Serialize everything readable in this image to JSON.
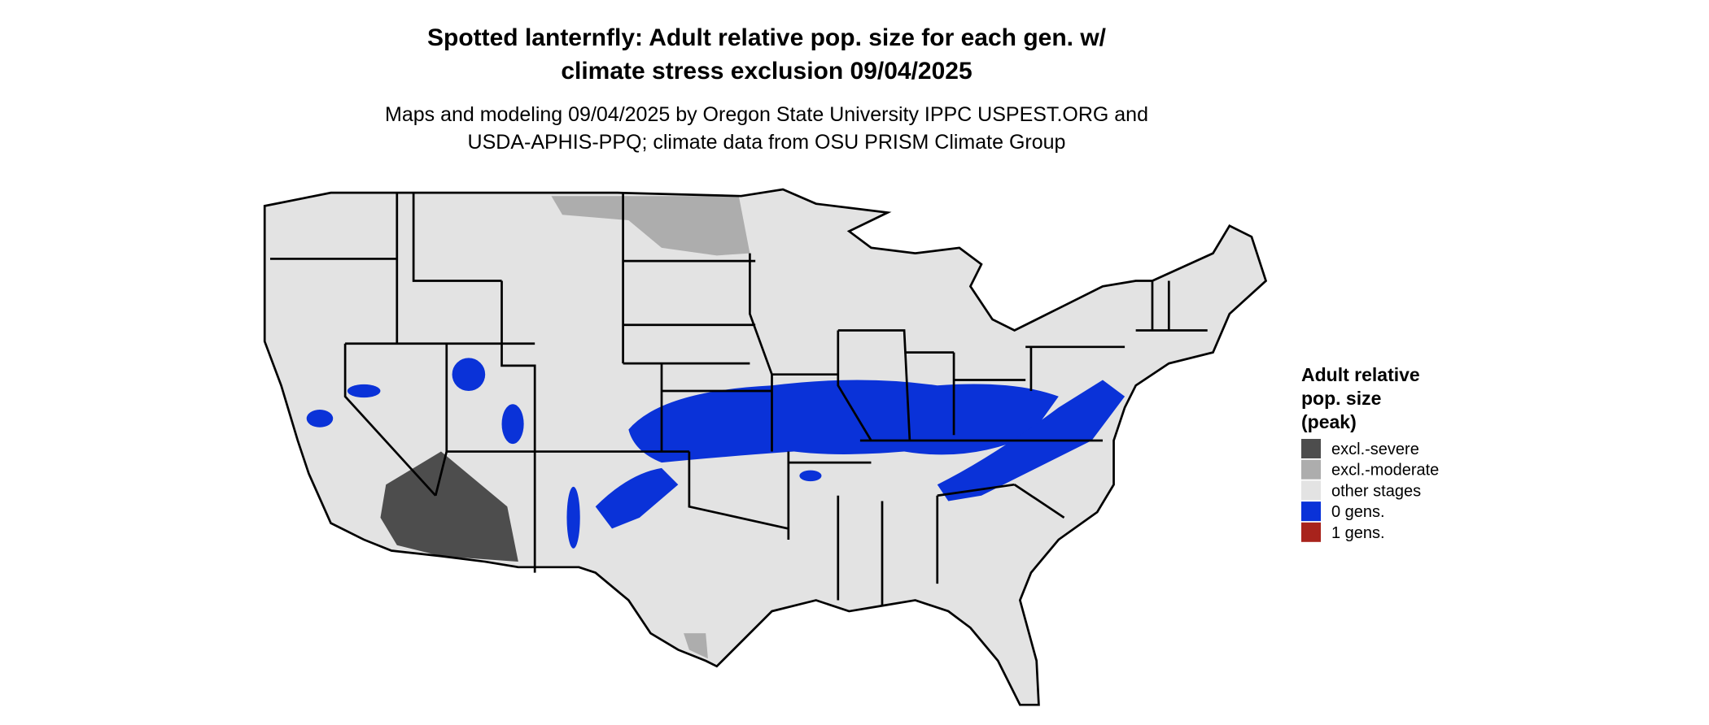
{
  "header": {
    "title_lines": [
      "Spotted lanternfly: Adult relative pop. size for each gen. w/",
      "climate stress exclusion 09/04/2025"
    ],
    "subtitle_lines": [
      "Maps and modeling 09/04/2025 by Oregon State University IPPC USPEST.ORG and",
      "USDA-APHIS-PPQ; climate data from OSU PRISM Climate Group"
    ]
  },
  "legend": {
    "title_lines": [
      "Adult relative",
      "pop. size",
      "(peak)"
    ],
    "items": [
      {
        "name": "excl.-severe",
        "color": "#4d4d4d"
      },
      {
        "name": "excl.-moderate",
        "color": "#adadad"
      },
      {
        "name": "other stages",
        "color": "#e3e3e3"
      },
      {
        "name": "0 gens.",
        "color": "#0a32d8"
      },
      {
        "name": "1 gens.",
        "color": "#a8231c"
      }
    ]
  }
}
